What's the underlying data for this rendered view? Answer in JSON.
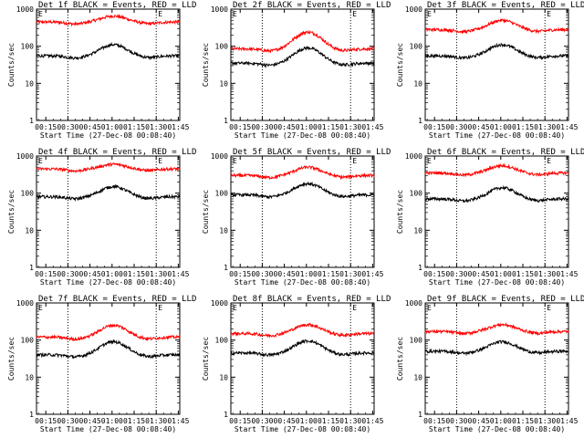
{
  "window": {
    "title": ""
  },
  "chart_data": {
    "type": "line",
    "grid": false,
    "ylabel": "Counts/sec",
    "xlabel": "Start Time (27-Dec-08 00:08:40)",
    "x_ticks": [
      "00:15",
      "00:30",
      "00:45",
      "01:00",
      "01:15",
      "01:30",
      "01:45"
    ],
    "x_range_minutes": [
      8.67,
      106
    ],
    "y_scale": "log",
    "y_ticks": [
      "1",
      "10",
      "100",
      "1000"
    ],
    "ylim": [
      1,
      1000
    ],
    "marker_E": "E",
    "vline_minutes": [
      30,
      90
    ],
    "series_colors": {
      "events": "#000000",
      "lld": "#ff0000"
    },
    "panels": [
      {
        "title": "Det 1f BLACK = Events, RED = LLD",
        "events": {
          "base": 55,
          "peak": 110
        },
        "lld": {
          "base": 450,
          "peak": 650
        }
      },
      {
        "title": "Det 2f BLACK = Events, RED = LLD",
        "events": {
          "base": 35,
          "peak": 90
        },
        "lld": {
          "base": 85,
          "peak": 240
        }
      },
      {
        "title": "Det 3f BLACK = Events, RED = LLD",
        "events": {
          "base": 55,
          "peak": 110
        },
        "lld": {
          "base": 280,
          "peak": 500
        }
      },
      {
        "title": "Det 4f BLACK = Events, RED = LLD",
        "events": {
          "base": 80,
          "peak": 150
        },
        "lld": {
          "base": 450,
          "peak": 600
        }
      },
      {
        "title": "Det 5f BLACK = Events, RED = LLD",
        "events": {
          "base": 90,
          "peak": 180
        },
        "lld": {
          "base": 300,
          "peak": 500
        }
      },
      {
        "title": "Det 6f BLACK = Events, RED = LLD",
        "events": {
          "base": 70,
          "peak": 140
        },
        "lld": {
          "base": 350,
          "peak": 550
        }
      },
      {
        "title": "Det 7f BLACK = Events, RED = LLD",
        "events": {
          "base": 40,
          "peak": 90
        },
        "lld": {
          "base": 120,
          "peak": 250
        }
      },
      {
        "title": "Det 8f BLACK = Events, RED = LLD",
        "events": {
          "base": 45,
          "peak": 95
        },
        "lld": {
          "base": 150,
          "peak": 260
        }
      },
      {
        "title": "Det 9f BLACK = Events, RED = LLD",
        "events": {
          "base": 50,
          "peak": 90
        },
        "lld": {
          "base": 170,
          "peak": 260
        }
      }
    ]
  }
}
